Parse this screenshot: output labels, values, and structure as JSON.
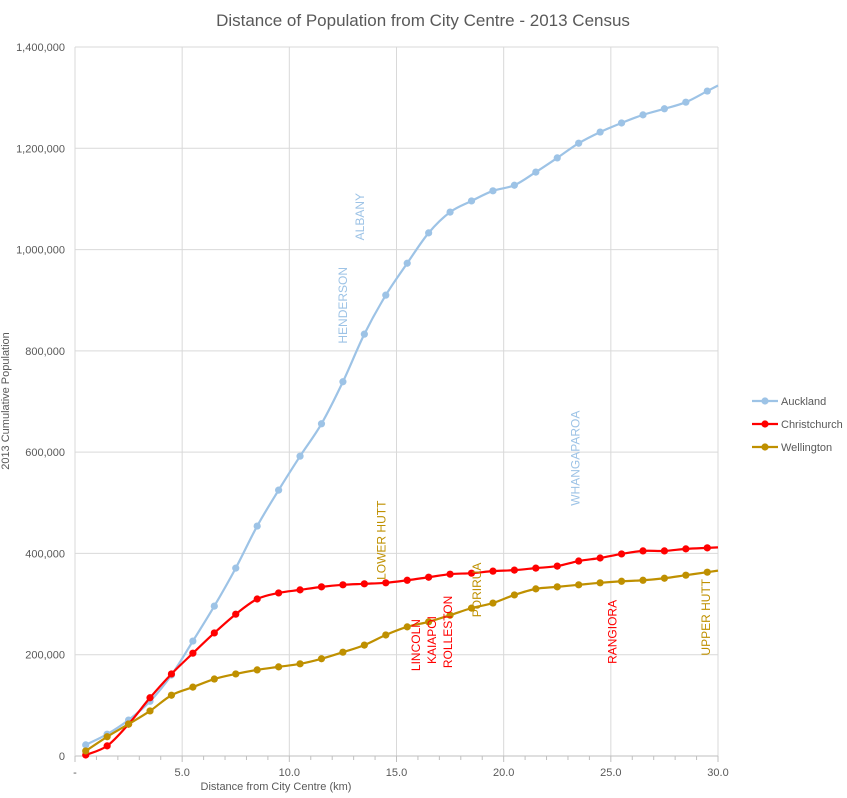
{
  "chart_data": {
    "type": "line",
    "title": "Distance of Population from City Centre - 2013 Census",
    "xlabel": "Distance from City Centre (km)",
    "ylabel": "2013 Cumulative Population",
    "xlim": [
      0,
      30
    ],
    "ylim": [
      0,
      1400000
    ],
    "x_ticks": [
      0,
      5,
      10,
      15,
      20,
      25,
      30
    ],
    "x_tick_labels": [
      "-",
      "5.0",
      "10.0",
      "15.0",
      "20.0",
      "25.0",
      "30.0"
    ],
    "y_ticks": [
      0,
      200000,
      400000,
      600000,
      800000,
      1000000,
      1200000,
      1400000
    ],
    "y_tick_labels": [
      "0",
      "200,000",
      "400,000",
      "600,000",
      "800,000",
      "1,000,000",
      "1,200,000",
      "1,400,000"
    ],
    "grid": true,
    "legend_position": "right",
    "x": [
      0.5,
      1.5,
      2.5,
      3.5,
      4.5,
      5.5,
      6.5,
      7.5,
      8.5,
      9.5,
      10.5,
      11.5,
      12.5,
      13.5,
      14.5,
      15.5,
      16.5,
      17.5,
      18.5,
      19.5,
      20.5,
      21.5,
      22.5,
      23.5,
      24.5,
      25.5,
      26.5,
      27.5,
      28.5,
      29.5
    ],
    "series": [
      {
        "name": "Auckland",
        "color": "#9DC3E6",
        "values": [
          22000,
          43000,
          71000,
          108000,
          160000,
          227000,
          296000,
          371000,
          454000,
          525000,
          592000,
          656000,
          739000,
          833000,
          910000,
          973000,
          1033000,
          1074000,
          1096000,
          1116000,
          1127000,
          1153000,
          1181000,
          1210000,
          1232000,
          1250000,
          1266000,
          1278000,
          1291000,
          1313000
        ]
      },
      {
        "name": "Christchurch",
        "color": "#FF0000",
        "values": [
          2000,
          20000,
          63000,
          115000,
          162000,
          203000,
          243000,
          280000,
          310000,
          322000,
          328000,
          334000,
          338000,
          340000,
          342000,
          347000,
          353000,
          359000,
          361000,
          365000,
          367000,
          371000,
          375000,
          385000,
          391000,
          399000,
          405000,
          405000,
          409000,
          411000
        ]
      },
      {
        "name": "Wellington",
        "color": "#BF9000",
        "values": [
          10000,
          38000,
          63000,
          89000,
          120000,
          136000,
          152000,
          162000,
          170000,
          176000,
          182000,
          192000,
          205000,
          219000,
          239000,
          255000,
          265000,
          278000,
          292000,
          302000,
          318000,
          330000,
          334000,
          338000,
          342000,
          345000,
          347000,
          351000,
          357000,
          363000
        ]
      }
    ],
    "annotations": [
      {
        "text": "ALBANY",
        "x": 13.3,
        "y": 1065000,
        "series": "Auckland"
      },
      {
        "text": "HENDERSON",
        "x": 12.5,
        "y": 890000,
        "series": "Auckland"
      },
      {
        "text": "WHANGAPAROA",
        "x": 23.35,
        "y": 588000,
        "series": "Auckland"
      },
      {
        "text": "LOWER HUTT",
        "x": 14.3,
        "y": 426000,
        "series": "Wellington"
      },
      {
        "text": "LINCOLN",
        "x": 15.9,
        "y": 219000,
        "series": "Christchurch"
      },
      {
        "text": "KAIAPOI",
        "x": 16.65,
        "y": 229000,
        "series": "Christchurch"
      },
      {
        "text": "ROLLESTON",
        "x": 17.4,
        "y": 245000,
        "series": "Christchurch"
      },
      {
        "text": "PORIRUA",
        "x": 18.75,
        "y": 328000,
        "series": "Wellington"
      },
      {
        "text": "RANGIORA",
        "x": 25.07,
        "y": 245000,
        "series": "Christchurch"
      },
      {
        "text": "UPPER HUTT",
        "x": 29.45,
        "y": 274000,
        "series": "Wellington"
      }
    ]
  }
}
